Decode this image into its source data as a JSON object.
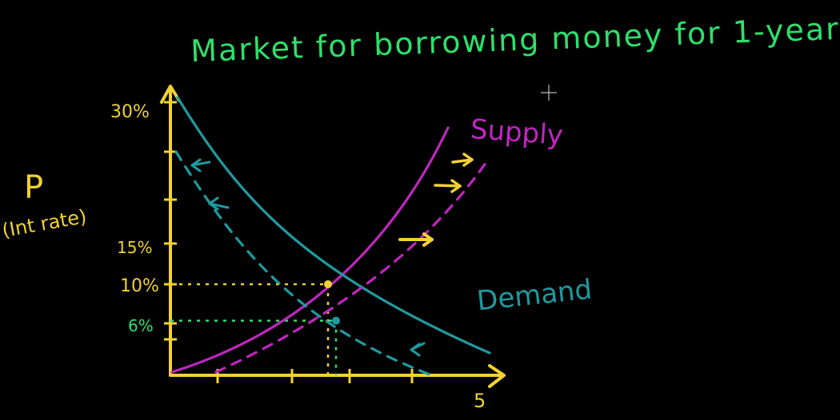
{
  "chart_data": {
    "type": "line",
    "title": "Market for borrowing money for 1-year",
    "ylabel": "P",
    "ylabel_sub": "(Int rate)",
    "y_ticks": [
      {
        "label": "30%",
        "value": 30
      },
      {
        "label": "15%",
        "value": 15
      },
      {
        "label": "10%",
        "value": 10
      },
      {
        "label": "6%",
        "value": 6
      }
    ],
    "x_tick_label": "5",
    "ylim": [
      0,
      30
    ],
    "series": [
      {
        "name": "Supply",
        "style": "solid",
        "color": "#c026c0"
      },
      {
        "name": "Demand",
        "style": "solid",
        "color": "#1f9aa0"
      },
      {
        "style": "dashed",
        "color": "#c026c0"
      },
      {
        "style": "dashed",
        "color": "#1f9aa0"
      }
    ],
    "equilibria": [
      {
        "y": 10,
        "color": "#f2d230"
      },
      {
        "y": 6,
        "color": "#2ee06a"
      }
    ]
  },
  "colors": {
    "axis": "#f2d230",
    "title": "#2ee06a",
    "supply": "#c026c0",
    "demand": "#1f9aa0",
    "shift_arrow": "#f2d230"
  }
}
